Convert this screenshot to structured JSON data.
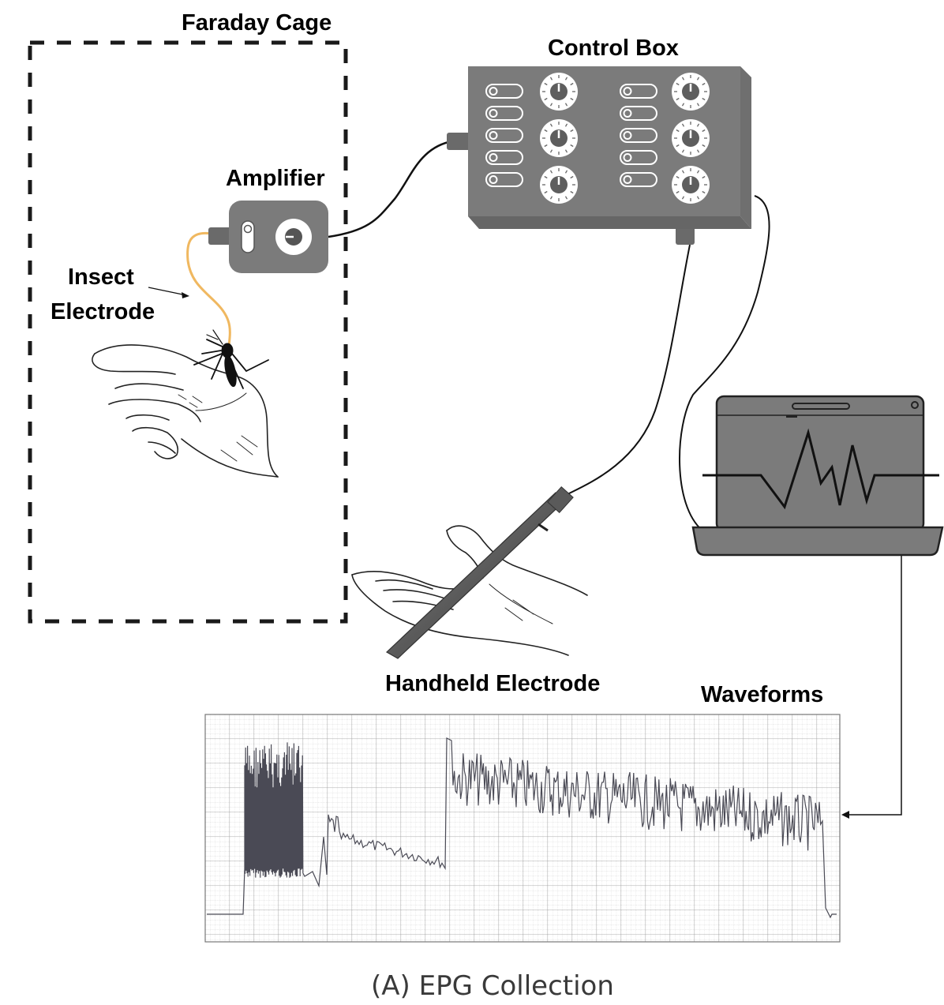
{
  "labels": {
    "faraday_cage": "Faraday Cage",
    "control_box": "Control Box",
    "amplifier": "Amplifier",
    "insect_electrode_line1": "Insect",
    "insect_electrode_line2": "Electrode",
    "handheld_electrode": "Handheld Electrode",
    "waveforms": "Waveforms"
  },
  "caption": "(A) EPG Collection",
  "colors": {
    "device_gray": "#7b7b7b",
    "device_dark": "#5e5e5e",
    "wire_insect": "#f0b860",
    "waveform": "#4a4a55",
    "grid": "#b8b8b8"
  },
  "icons": [
    "hand-icon",
    "mosquito-icon",
    "knob-icon",
    "toggle-switch-icon",
    "laptop-icon",
    "electrode-rod-icon"
  ]
}
